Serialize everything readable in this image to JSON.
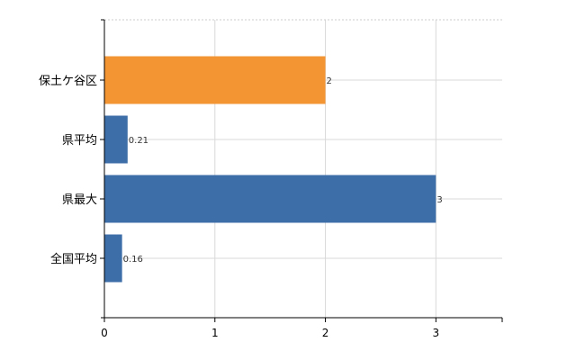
{
  "chart_data": {
    "type": "bar",
    "orientation": "horizontal",
    "categories": [
      "保土ケ谷区",
      "県平均",
      "県最大",
      "全国平均"
    ],
    "values": [
      2,
      0.21,
      3,
      0.16
    ],
    "data_labels": [
      "2",
      "0.21",
      "3",
      "0.16"
    ],
    "bar_colors": [
      "#f39533",
      "#3d6ea8",
      "#3d6ea8",
      "#3d6ea8"
    ],
    "highlight_color": "#f39533",
    "base_color": "#3d6ea8",
    "title": "",
    "xlabel": "",
    "ylabel": "",
    "xlim": [
      0,
      3.6
    ],
    "xticks": [
      0,
      1,
      2,
      3
    ],
    "xtick_labels": [
      "0",
      "1",
      "2",
      "3"
    ],
    "grid": true,
    "legend": "none"
  }
}
